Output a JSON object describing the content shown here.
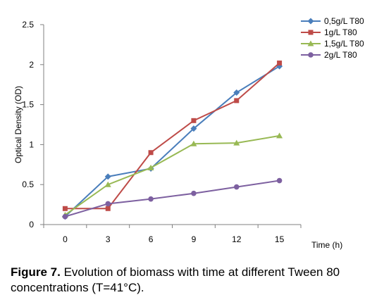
{
  "chart_data": {
    "type": "line",
    "x": [
      0,
      3,
      6,
      9,
      12,
      15
    ],
    "x_tick_labels": [
      "0",
      "3",
      "6",
      "9",
      "12",
      "15"
    ],
    "y_tick_labels": [
      "0",
      "0.5",
      "1",
      "1.5",
      "2",
      "2.5"
    ],
    "ylim": [
      0,
      2.5
    ],
    "xlabel": "Time (h)",
    "ylabel": "Optical Density (OD)",
    "grid": false,
    "legend_position": "top-right",
    "series": [
      {
        "name": "0,5g/L T80",
        "color": "#4a7ebb",
        "marker": "diamond",
        "values": [
          0.1,
          0.6,
          0.7,
          1.2,
          1.65,
          1.98
        ]
      },
      {
        "name": "1g/L T80",
        "color": "#be4b48",
        "marker": "square",
        "values": [
          0.2,
          0.2,
          0.9,
          1.3,
          1.55,
          2.02
        ]
      },
      {
        "name": "1,5g/L T80",
        "color": "#98b954",
        "marker": "triangle",
        "values": [
          0.12,
          0.5,
          0.71,
          1.01,
          1.02,
          1.11
        ]
      },
      {
        "name": "2g/L T80",
        "color": "#7d60a0",
        "marker": "circle",
        "values": [
          0.1,
          0.26,
          0.32,
          0.39,
          0.47,
          0.55
        ]
      }
    ]
  },
  "caption": {
    "figure_number": "Figure 7.",
    "text": " Evolution of biomass with time at different Tween 80 concentrations (T=41°C)."
  }
}
